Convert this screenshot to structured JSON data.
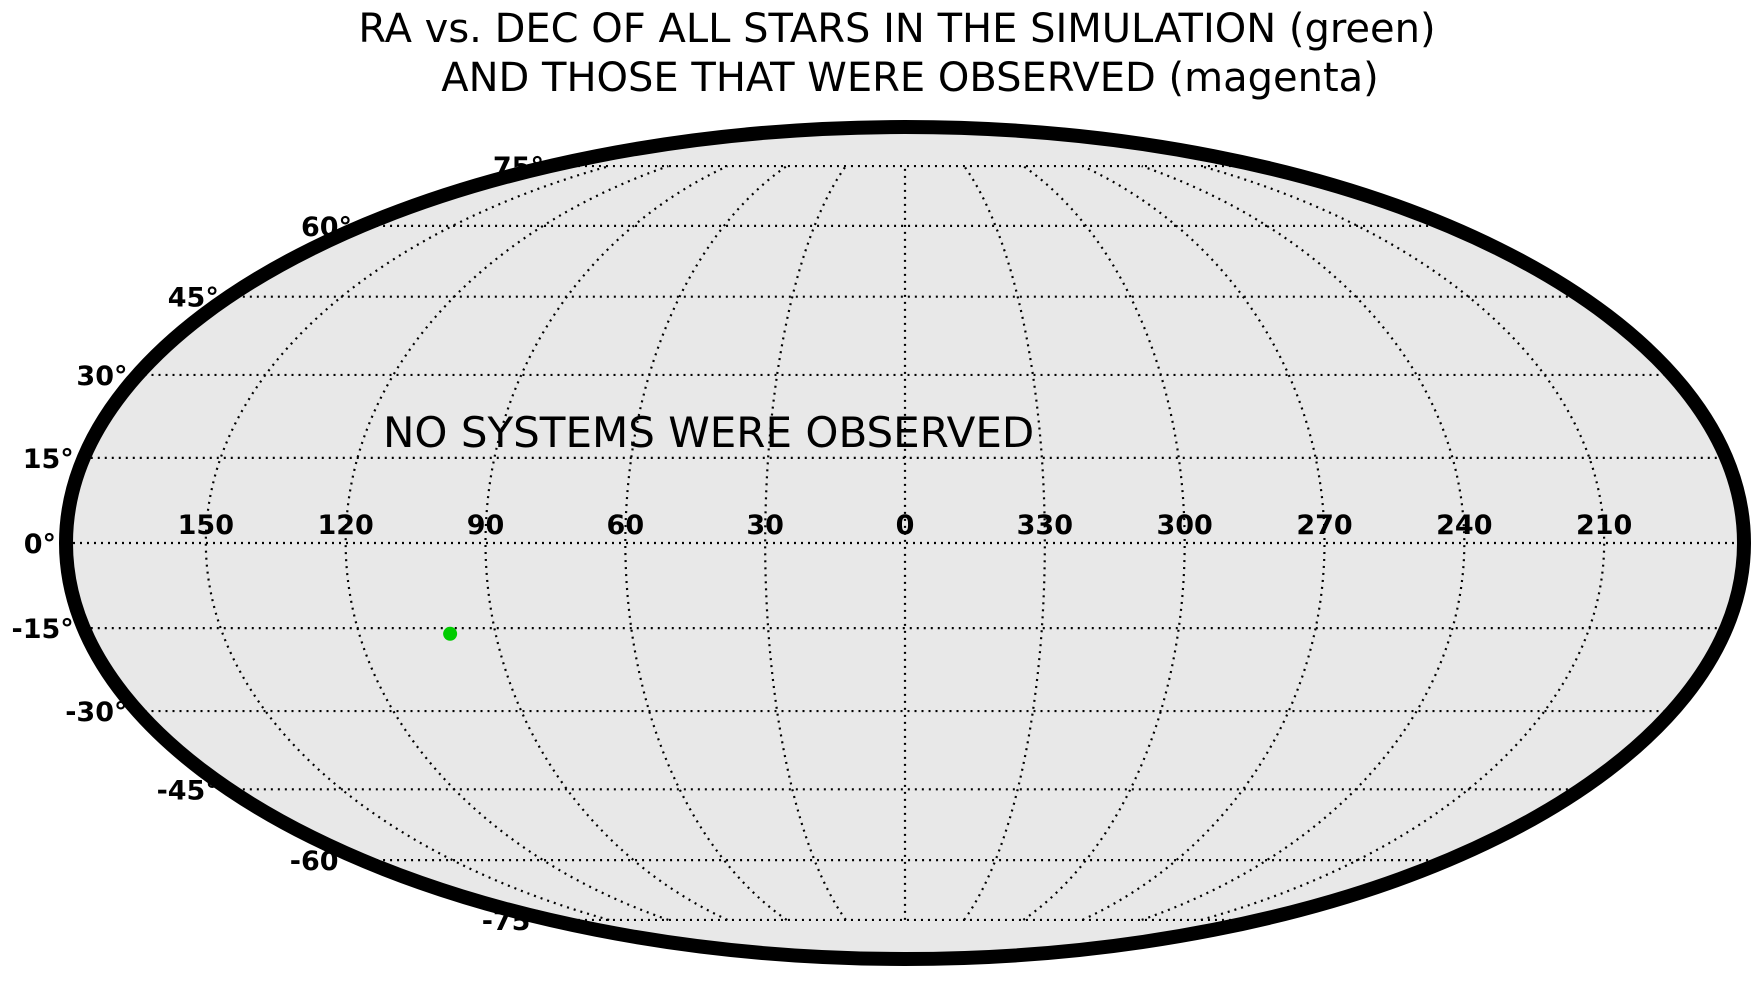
{
  "chart_data": {
    "type": "scatter",
    "projection": "mollweide",
    "title": [
      "RA vs. DEC OF ALL STARS IN THE SIMULATION (green)",
      "AND THOSE THAT WERE OBSERVED (magenta)"
    ],
    "annotation": "NO SYSTEMS WERE OBSERVED",
    "lon_ticks": [
      150,
      120,
      90,
      60,
      30,
      0,
      330,
      300,
      270,
      240,
      210
    ],
    "lon_tick_labels": [
      "150",
      "120",
      "90",
      "60",
      "30",
      "0",
      "330",
      "300",
      "270",
      "240",
      "210"
    ],
    "lat_ticks": [
      75,
      60,
      45,
      30,
      15,
      0,
      -15,
      -30,
      -45,
      -60,
      -75
    ],
    "lat_tick_labels": [
      "75°",
      "60°",
      "45°",
      "30°",
      "15°",
      "0°",
      "-15°",
      "-30°",
      "-45°",
      "-60°",
      "-75°"
    ],
    "grid": true,
    "colors": {
      "background": "#e8e8e8",
      "border": "#000000",
      "all_stars": "#00cc00",
      "observed": "#ff00ff"
    },
    "series": [
      {
        "name": "green",
        "points": [
          {
            "ra": 100,
            "dec": -16
          }
        ]
      },
      {
        "name": "magenta",
        "points": []
      }
    ]
  }
}
